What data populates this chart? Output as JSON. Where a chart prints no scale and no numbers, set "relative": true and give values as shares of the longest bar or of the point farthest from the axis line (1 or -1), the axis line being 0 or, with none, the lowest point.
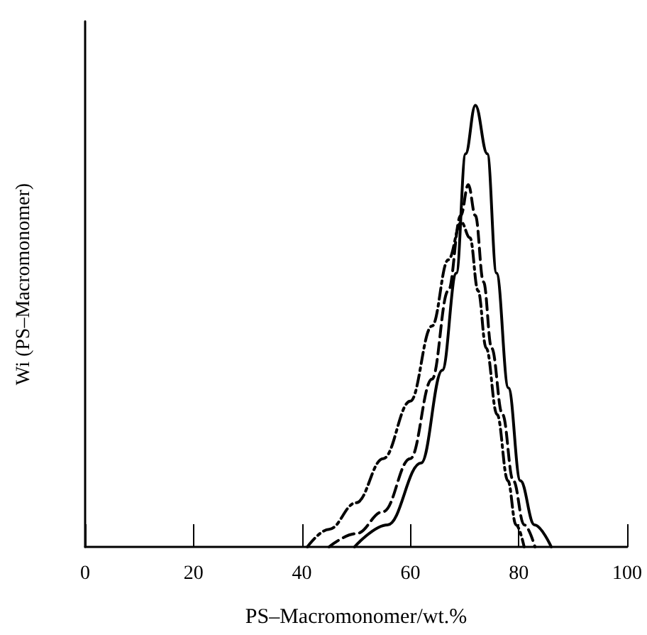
{
  "chart_data": {
    "type": "line",
    "xlabel": "PS–Macromonomer/wt.%",
    "ylabel": "Wi (PS–Macromonomer)",
    "relative": true,
    "xlim": [
      0,
      100
    ],
    "xticks": [
      0,
      20,
      40,
      60,
      80,
      100
    ],
    "grid": false,
    "marker": "none",
    "series": [
      {
        "color": "#000000",
        "line_style": "solid",
        "x": [
          49.7,
          55.8,
          62,
          65.9,
          68.5,
          70.2,
          72,
          74.2,
          75.9,
          78.1,
          80.3,
          82.9,
          86
        ],
        "values": [
          0,
          0.05,
          0.19,
          0.4,
          0.62,
          0.89,
          1,
          0.89,
          0.62,
          0.36,
          0.15,
          0.05,
          0
        ]
      },
      {
        "color": "#000000",
        "line_style": "dashed",
        "x": [
          45,
          50,
          55,
          60,
          64,
          67,
          69.3,
          70.7,
          72,
          73.5,
          75,
          77,
          79,
          81,
          83
        ],
        "values": [
          0,
          0.03,
          0.08,
          0.2,
          0.38,
          0.58,
          0.75,
          0.82,
          0.75,
          0.6,
          0.45,
          0.3,
          0.15,
          0.05,
          0
        ]
      },
      {
        "color": "#000000",
        "line_style": "dashdot",
        "x": [
          41,
          45,
          50,
          55,
          60,
          64,
          67,
          69.4,
          71,
          72.5,
          74,
          76,
          78,
          79.5,
          81
        ],
        "values": [
          0,
          0.04,
          0.1,
          0.2,
          0.33,
          0.5,
          0.65,
          0.735,
          0.7,
          0.58,
          0.45,
          0.3,
          0.15,
          0.05,
          0
        ]
      }
    ]
  }
}
